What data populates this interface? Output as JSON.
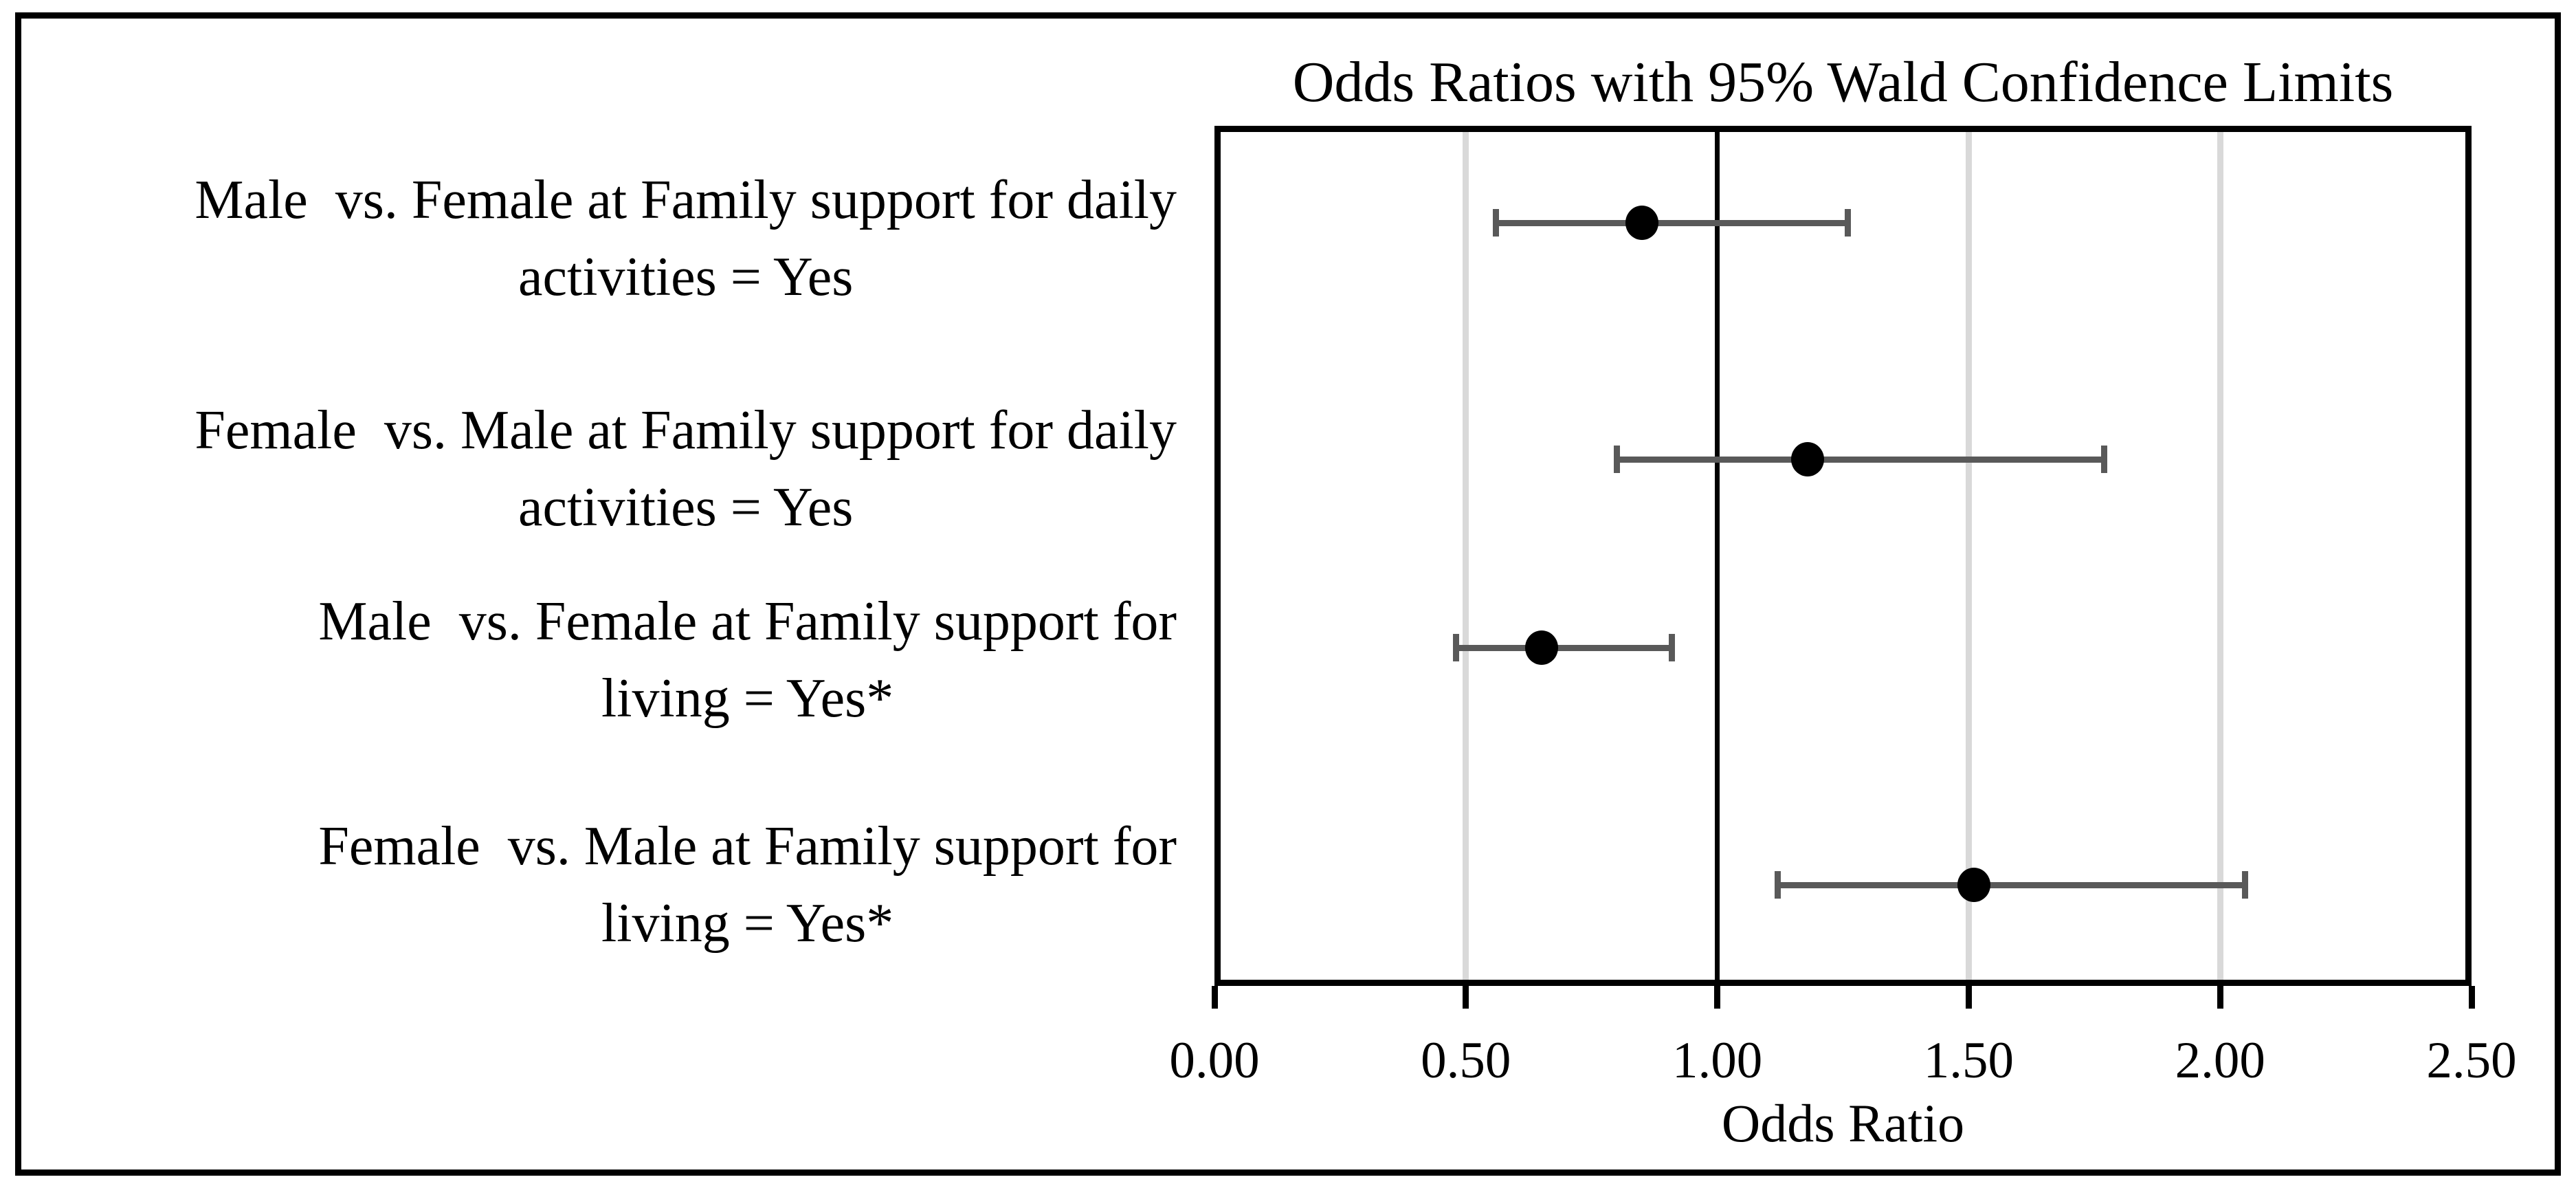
{
  "figure": {
    "title": "Odds Ratios with 95% Wald Confidence Limits",
    "x_axis_label": "Odds Ratio"
  },
  "chart_data": {
    "type": "scatter",
    "variant": "forest-plot",
    "title": "Odds Ratios with 95% Wald Confidence Limits",
    "xlabel": "Odds Ratio",
    "ylabel": "",
    "xlim": [
      0,
      2.5
    ],
    "x_ticks": [
      "0.00",
      "0.50",
      "1.00",
      "1.50",
      "2.00",
      "2.50"
    ],
    "reference_line": 1.0,
    "grid": "vertical-gridlines-at-major-ticks",
    "legend": "none",
    "rows": [
      {
        "label_line1": "Male  vs. Female at Family support for daily",
        "label_line2": "activities = Yes",
        "odds_ratio": 0.85,
        "ci_lower": 0.56,
        "ci_upper": 1.26
      },
      {
        "label_line1": "Female  vs. Male at Family support for daily",
        "label_line2": "activities = Yes",
        "odds_ratio": 1.18,
        "ci_lower": 0.8,
        "ci_upper": 1.77
      },
      {
        "label_line1": "Male  vs. Female at Family support for",
        "label_line2": "living = Yes*",
        "odds_ratio": 0.65,
        "ci_lower": 0.48,
        "ci_upper": 0.91
      },
      {
        "label_line1": "Female  vs. Male at Family support for",
        "label_line2": "living = Yes*",
        "odds_ratio": 1.51,
        "ci_lower": 1.12,
        "ci_upper": 2.05
      }
    ],
    "colors": {
      "marker": "#000000",
      "error_bar": "#595959",
      "gridline": "#d9d9d9",
      "reference_line": "#000000",
      "frame": "#000000",
      "background": "#ffffff"
    }
  }
}
